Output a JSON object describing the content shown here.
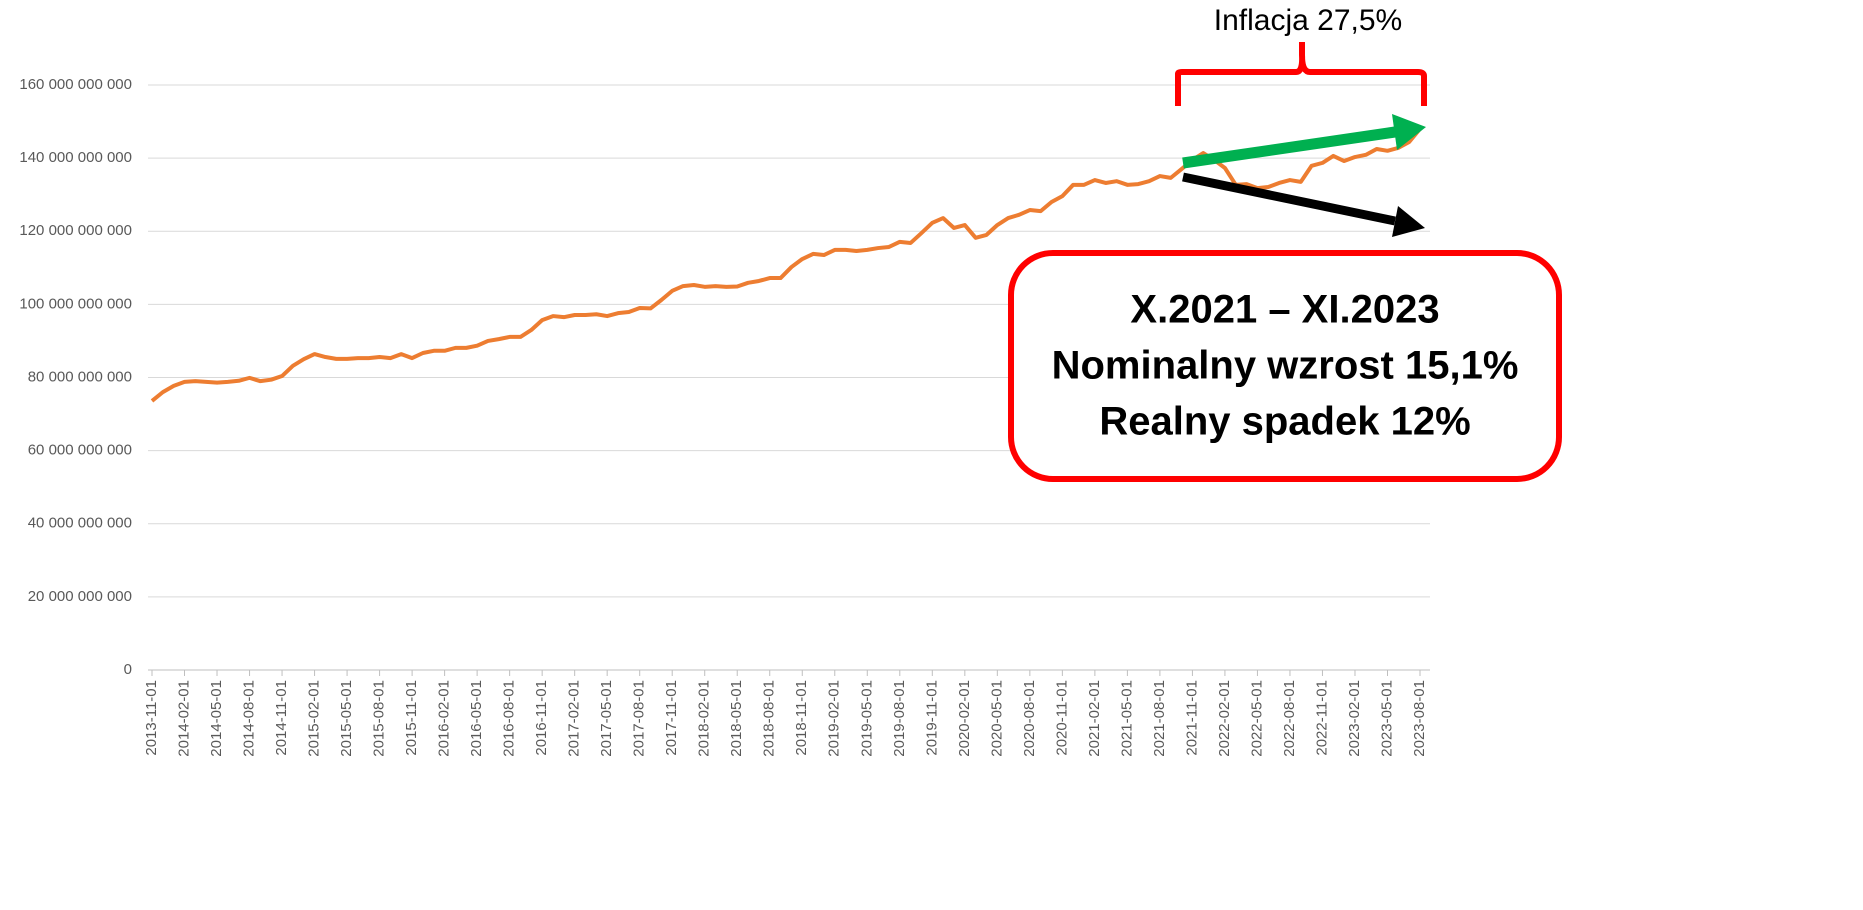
{
  "chart_data": {
    "type": "line",
    "annotations": [
      "Inflacja 27,5%"
    ],
    "callout": [
      "X.2021 – XI.2023",
      "Nominalny wzrost 15,1%",
      "Realny spadek 12%"
    ],
    "categories": [
      "2013-11-01",
      null,
      null,
      "2014-02-01",
      null,
      null,
      "2014-05-01",
      null,
      null,
      "2014-08-01",
      null,
      null,
      "2014-11-01",
      null,
      null,
      "2015-02-01",
      null,
      null,
      "2015-05-01",
      null,
      null,
      "2015-08-01",
      null,
      null,
      "2015-11-01",
      null,
      null,
      "2016-02-01",
      null,
      null,
      "2016-05-01",
      null,
      null,
      "2016-08-01",
      null,
      null,
      "2016-11-01",
      null,
      null,
      "2017-02-01",
      null,
      null,
      "2017-05-01",
      null,
      null,
      "2017-08-01",
      null,
      null,
      "2017-11-01",
      null,
      null,
      "2018-02-01",
      null,
      null,
      "2018-05-01",
      null,
      null,
      "2018-08-01",
      null,
      null,
      "2018-11-01",
      null,
      null,
      "2019-02-01",
      null,
      null,
      "2019-05-01",
      null,
      null,
      "2019-08-01",
      null,
      null,
      "2019-11-01",
      null,
      null,
      "2020-02-01",
      null,
      null,
      "2020-05-01",
      null,
      null,
      "2020-08-01",
      null,
      null,
      "2020-11-01",
      null,
      null,
      "2021-02-01",
      null,
      null,
      "2021-05-01",
      null,
      null,
      "2021-08-01",
      null,
      null,
      "2021-11-01",
      null,
      null,
      "2022-02-01",
      null,
      null,
      "2022-05-01",
      null,
      null,
      "2022-08-01",
      null,
      null,
      "2022-11-01",
      null,
      null,
      "2023-02-01",
      null,
      null,
      "2023-05-01",
      null,
      null,
      "2023-08-01"
    ],
    "series": [
      {
        "color": "#ed7d31",
        "values": [
          73600000000,
          76000000000,
          77700000000,
          78800000000,
          79000000000,
          78800000000,
          78600000000,
          78800000000,
          79100000000,
          79900000000,
          79000000000,
          79400000000,
          80400000000,
          83200000000,
          85000000000,
          86400000000,
          85600000000,
          85100000000,
          85100000000,
          85300000000,
          85300000000,
          85600000000,
          85300000000,
          86400000000,
          85300000000,
          86700000000,
          87300000000,
          87300000000,
          88100000000,
          88100000000,
          88700000000,
          90000000000,
          90500000000,
          91100000000,
          91100000000,
          93000000000,
          95700000000,
          96800000000,
          96500000000,
          97100000000,
          97100000000,
          97300000000,
          96800000000,
          97600000000,
          97900000000,
          99000000000,
          98900000000,
          101200000000,
          103700000000,
          105000000000,
          105300000000,
          104800000000,
          105000000000,
          104800000000,
          104900000000,
          105900000000,
          106400000000,
          107200000000,
          107200000000,
          110200000000,
          112400000000,
          113800000000,
          113500000000,
          114900000000,
          114900000000,
          114600000000,
          114900000000,
          115400000000,
          115700000000,
          117100000000,
          116800000000,
          119500000000,
          122300000000,
          123600000000,
          120900000000,
          121700000000,
          118200000000,
          119000000000,
          121700000000,
          123600000000,
          124500000000,
          125800000000,
          125500000000,
          128000000000,
          129600000000,
          132700000000,
          132700000000,
          134000000000,
          133200000000,
          133700000000,
          132700000000,
          132900000000,
          133700000000,
          135100000000,
          134600000000,
          137000000000,
          139500000000,
          141400000000,
          139500000000,
          137300000000,
          132700000000,
          132900000000,
          131800000000,
          132100000000,
          133200000000,
          134000000000,
          133500000000,
          137900000000,
          138700000000,
          140600000000,
          139200000000,
          140300000000,
          140900000000,
          142500000000,
          142000000000,
          142800000000,
          144400000000,
          148000000000
        ]
      }
    ],
    "ylim": [
      0,
      160000000000
    ],
    "yticks": [
      0,
      {
        "value": 20000000000,
        "label": "20 000 000 000"
      },
      {
        "value": 40000000000,
        "label": "40 000 000 000"
      },
      {
        "value": 60000000000,
        "label": "60 000 000 000"
      },
      {
        "value": 80000000000,
        "label": "80 000 000 000"
      },
      {
        "value": 100000000000,
        "label": "100 000 000 000"
      },
      {
        "value": 120000000000,
        "label": "120 000 000 000"
      },
      {
        "value": 140000000000,
        "label": "140 000 000 000"
      },
      {
        "value": 160000000000,
        "label": "160 000 000 000"
      }
    ],
    "grid": true
  }
}
